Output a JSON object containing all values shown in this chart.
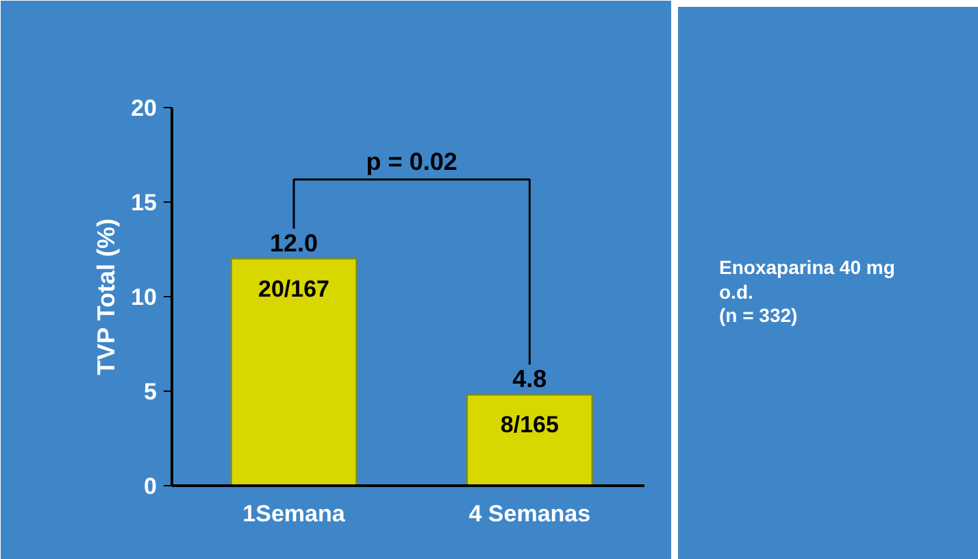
{
  "chart_data": {
    "type": "bar",
    "ylabel": "TVP Total (%)",
    "categories": [
      "1Semana",
      "4 Semanas"
    ],
    "values": [
      12.0,
      4.8
    ],
    "value_labels": [
      "12.0",
      "4.8"
    ],
    "color": "#d8d800",
    "ylim": [
      0,
      20
    ],
    "yticks": [
      0,
      5,
      10,
      15,
      20
    ],
    "grid": false,
    "annotations": [
      "20/167",
      "8/165",
      "p = 0.02",
      "Enoxaparina 40 mg\no.d.\n(n = 332)"
    ]
  }
}
